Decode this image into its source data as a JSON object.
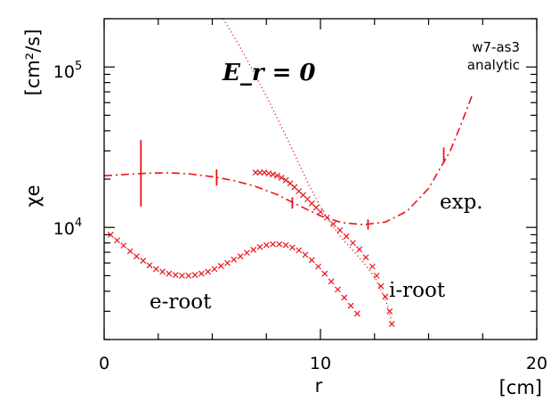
{
  "chart_data": {
    "type": "scatter",
    "title": "",
    "xlabel": "r",
    "xunit": "[cm]",
    "ylabel": "χe",
    "yunit": "[cm²/s]",
    "xlim": [
      0,
      20
    ],
    "ylim": [
      2000,
      200000
    ],
    "yscale": "log",
    "x_ticks": [
      {
        "value": 0,
        "label": "0"
      },
      {
        "value": 10,
        "label": "10"
      },
      {
        "value": 20,
        "label": "20"
      }
    ],
    "y_ticks": [
      {
        "value": 10000,
        "label": "10^4",
        "base": "10",
        "exp": "4"
      },
      {
        "value": 100000,
        "label": "10^5",
        "base": "10",
        "exp": "5"
      }
    ],
    "annotations": {
      "er": "E_r = 0",
      "source_line1": "w7-as3",
      "source_line2": "analytic",
      "exp": "exp.",
      "iroot": "i-root",
      "eroot": "e-root"
    },
    "colors": {
      "series": "#e8141c",
      "axis": "#000000"
    },
    "series": [
      {
        "name": "exp.",
        "style": "dash-dot",
        "points": [
          [
            0,
            21000
          ],
          [
            1,
            21400
          ],
          [
            2,
            21800
          ],
          [
            3,
            21900
          ],
          [
            4,
            21500
          ],
          [
            5,
            20700
          ],
          [
            6,
            19600
          ],
          [
            7,
            18000
          ],
          [
            8,
            16000
          ],
          [
            9,
            13700
          ],
          [
            10,
            11800
          ],
          [
            11,
            10700
          ],
          [
            12,
            10400
          ],
          [
            13,
            10800
          ],
          [
            14,
            12600
          ],
          [
            15,
            17500
          ],
          [
            16,
            30000
          ],
          [
            16.5,
            44000
          ],
          [
            17,
            66000
          ]
        ],
        "errorbars": [
          [
            1.7,
            13500,
            35000
          ],
          [
            5.2,
            18200,
            23000
          ],
          [
            8.7,
            13100,
            15400
          ],
          [
            12.2,
            9700,
            11200
          ],
          [
            15.7,
            25000,
            31500
          ]
        ]
      },
      {
        "name": "i-root",
        "style": "cross",
        "points": [
          [
            7.0,
            22000
          ],
          [
            7.2,
            22000
          ],
          [
            7.4,
            22000
          ],
          [
            7.6,
            21700
          ],
          [
            7.8,
            21400
          ],
          [
            8.0,
            21000
          ],
          [
            8.2,
            20400
          ],
          [
            8.4,
            19700
          ],
          [
            8.6,
            18800
          ],
          [
            8.8,
            17800
          ],
          [
            9.0,
            16800
          ],
          [
            9.2,
            15900
          ],
          [
            9.4,
            15000
          ],
          [
            9.6,
            14100
          ],
          [
            9.8,
            13300
          ],
          [
            10.0,
            12500
          ],
          [
            10.3,
            11500
          ],
          [
            10.6,
            10500
          ],
          [
            10.9,
            9600
          ],
          [
            11.2,
            8800
          ],
          [
            11.5,
            8000
          ],
          [
            11.8,
            7300
          ],
          [
            12.1,
            6500
          ],
          [
            12.4,
            5700
          ],
          [
            12.6,
            5000
          ],
          [
            12.8,
            4300
          ],
          [
            13.0,
            3700
          ],
          [
            13.2,
            3000
          ],
          [
            13.3,
            2500
          ]
        ]
      },
      {
        "name": "e-root",
        "style": "cross",
        "points": [
          [
            0.3,
            9000
          ],
          [
            0.6,
            8300
          ],
          [
            0.9,
            7700
          ],
          [
            1.2,
            7100
          ],
          [
            1.5,
            6600
          ],
          [
            1.8,
            6200
          ],
          [
            2.1,
            5800
          ],
          [
            2.4,
            5500
          ],
          [
            2.7,
            5300
          ],
          [
            3.0,
            5150
          ],
          [
            3.3,
            5050
          ],
          [
            3.6,
            5000
          ],
          [
            3.9,
            5000
          ],
          [
            4.2,
            5050
          ],
          [
            4.5,
            5150
          ],
          [
            4.8,
            5300
          ],
          [
            5.1,
            5500
          ],
          [
            5.4,
            5750
          ],
          [
            5.7,
            6000
          ],
          [
            6.0,
            6300
          ],
          [
            6.3,
            6600
          ],
          [
            6.6,
            6950
          ],
          [
            6.9,
            7250
          ],
          [
            7.2,
            7550
          ],
          [
            7.5,
            7750
          ],
          [
            7.8,
            7850
          ],
          [
            8.1,
            7850
          ],
          [
            8.4,
            7750
          ],
          [
            8.7,
            7500
          ],
          [
            9.0,
            7200
          ],
          [
            9.3,
            6750
          ],
          [
            9.6,
            6250
          ],
          [
            9.9,
            5700
          ],
          [
            10.2,
            5150
          ],
          [
            10.5,
            4600
          ],
          [
            10.8,
            4100
          ],
          [
            11.1,
            3650
          ],
          [
            11.4,
            3250
          ],
          [
            11.7,
            2900
          ]
        ]
      },
      {
        "name": "",
        "style": "dotted",
        "points": [
          [
            5.5,
            200000
          ],
          [
            6,
            155000
          ],
          [
            6.5,
            118000
          ],
          [
            7,
            88000
          ],
          [
            7.5,
            66000
          ],
          [
            8,
            48000
          ],
          [
            8.5,
            35000
          ],
          [
            9,
            25000
          ],
          [
            9.5,
            18000
          ],
          [
            10,
            13500
          ],
          [
            10.5,
            10500
          ],
          [
            11,
            8500
          ],
          [
            11.5,
            7200
          ],
          [
            12,
            6000
          ],
          [
            12.5,
            4900
          ],
          [
            13,
            3600
          ],
          [
            13.3,
            2600
          ]
        ]
      }
    ]
  }
}
